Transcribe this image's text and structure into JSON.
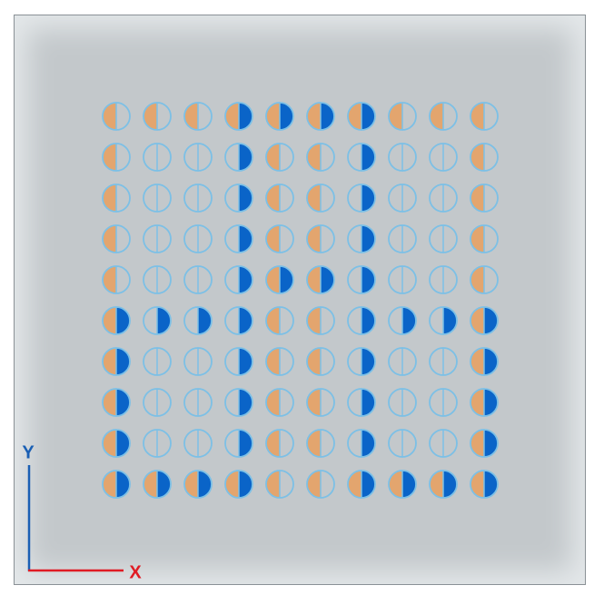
{
  "axes": {
    "x": "X",
    "y": "Y"
  },
  "colors": {
    "left": "#e3a56e",
    "right": "#0a64c8",
    "outline": "#7cc0e6"
  },
  "grid": [
    [
      [
        true,
        false
      ],
      [
        true,
        false
      ],
      [
        true,
        false
      ],
      [
        true,
        true
      ],
      [
        true,
        true
      ],
      [
        true,
        true
      ],
      [
        true,
        true
      ],
      [
        true,
        false
      ],
      [
        true,
        false
      ],
      [
        true,
        false
      ]
    ],
    [
      [
        true,
        false
      ],
      [
        false,
        false
      ],
      [
        false,
        false
      ],
      [
        false,
        true
      ],
      [
        true,
        false
      ],
      [
        true,
        false
      ],
      [
        false,
        true
      ],
      [
        false,
        false
      ],
      [
        false,
        false
      ],
      [
        true,
        false
      ]
    ],
    [
      [
        true,
        false
      ],
      [
        false,
        false
      ],
      [
        false,
        false
      ],
      [
        false,
        true
      ],
      [
        true,
        false
      ],
      [
        true,
        false
      ],
      [
        false,
        true
      ],
      [
        false,
        false
      ],
      [
        false,
        false
      ],
      [
        true,
        false
      ]
    ],
    [
      [
        true,
        false
      ],
      [
        false,
        false
      ],
      [
        false,
        false
      ],
      [
        false,
        true
      ],
      [
        true,
        false
      ],
      [
        true,
        false
      ],
      [
        false,
        true
      ],
      [
        false,
        false
      ],
      [
        false,
        false
      ],
      [
        true,
        false
      ]
    ],
    [
      [
        true,
        false
      ],
      [
        false,
        false
      ],
      [
        false,
        false
      ],
      [
        false,
        true
      ],
      [
        true,
        true
      ],
      [
        true,
        true
      ],
      [
        false,
        true
      ],
      [
        false,
        false
      ],
      [
        false,
        false
      ],
      [
        true,
        false
      ]
    ],
    [
      [
        true,
        true
      ],
      [
        false,
        true
      ],
      [
        false,
        true
      ],
      [
        false,
        true
      ],
      [
        true,
        false
      ],
      [
        true,
        false
      ],
      [
        false,
        true
      ],
      [
        false,
        true
      ],
      [
        false,
        true
      ],
      [
        true,
        true
      ]
    ],
    [
      [
        true,
        true
      ],
      [
        false,
        false
      ],
      [
        false,
        false
      ],
      [
        false,
        true
      ],
      [
        true,
        false
      ],
      [
        true,
        false
      ],
      [
        false,
        true
      ],
      [
        false,
        false
      ],
      [
        false,
        false
      ],
      [
        true,
        true
      ]
    ],
    [
      [
        true,
        true
      ],
      [
        false,
        false
      ],
      [
        false,
        false
      ],
      [
        false,
        true
      ],
      [
        true,
        false
      ],
      [
        true,
        false
      ],
      [
        false,
        true
      ],
      [
        false,
        false
      ],
      [
        false,
        false
      ],
      [
        true,
        true
      ]
    ],
    [
      [
        true,
        true
      ],
      [
        false,
        false
      ],
      [
        false,
        false
      ],
      [
        false,
        true
      ],
      [
        true,
        false
      ],
      [
        true,
        false
      ],
      [
        false,
        true
      ],
      [
        false,
        false
      ],
      [
        false,
        false
      ],
      [
        true,
        true
      ]
    ],
    [
      [
        true,
        true
      ],
      [
        true,
        true
      ],
      [
        true,
        true
      ],
      [
        true,
        true
      ],
      [
        true,
        false
      ],
      [
        true,
        false
      ],
      [
        true,
        true
      ],
      [
        true,
        true
      ],
      [
        true,
        true
      ],
      [
        true,
        true
      ]
    ]
  ]
}
